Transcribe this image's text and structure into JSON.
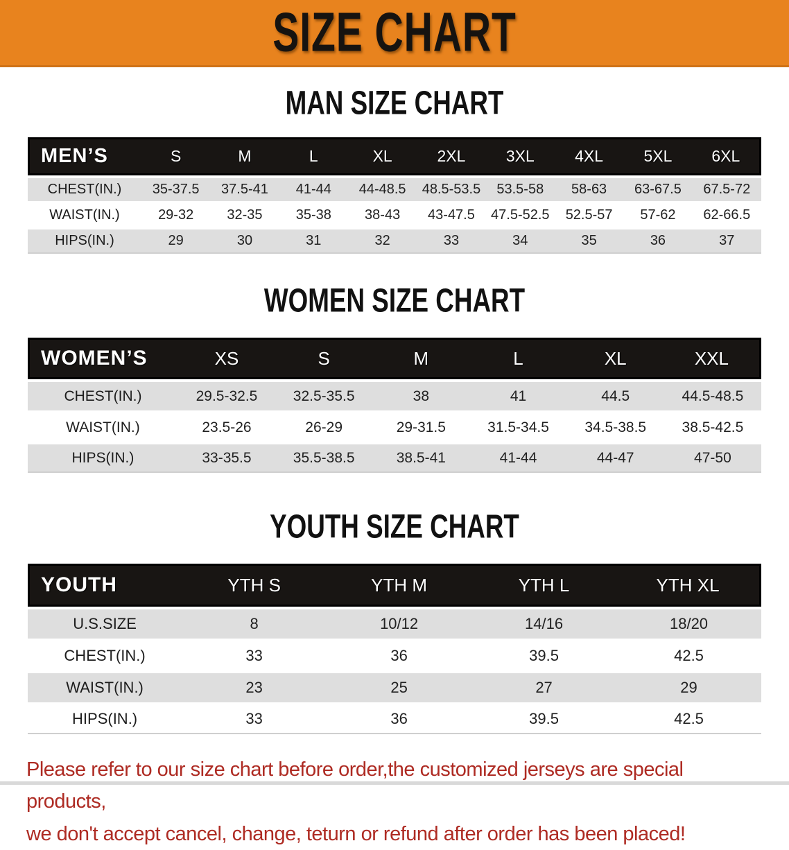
{
  "banner": {
    "title": "SIZE CHART"
  },
  "colors": {
    "banner_bg": "#E8831E",
    "table_header_bg": "#181513",
    "shaded_row_bg": "#DEDEDE",
    "footer_text": "#AE2B23"
  },
  "tables": [
    {
      "heading": "MAN SIZE CHART",
      "label": "MEN’S",
      "columns": [
        "S",
        "M",
        "L",
        "XL",
        "2XL",
        "3XL",
        "4XL",
        "5XL",
        "6XL"
      ],
      "rows": [
        {
          "label": "CHEST(IN.)",
          "values": [
            "35-37.5",
            "37.5-41",
            "41-44",
            "44-48.5",
            "48.5-53.5",
            "53.5-58",
            "58-63",
            "63-67.5",
            "67.5-72"
          ]
        },
        {
          "label": "WAIST(IN.)",
          "values": [
            "29-32",
            "32-35",
            "35-38",
            "38-43",
            "43-47.5",
            "47.5-52.5",
            "52.5-57",
            "57-62",
            "62-66.5"
          ]
        },
        {
          "label": "HIPS(IN.)",
          "values": [
            "29",
            "30",
            "31",
            "32",
            "33",
            "34",
            "35",
            "36",
            "37"
          ]
        }
      ]
    },
    {
      "heading": "WOMEN SIZE CHART",
      "label": "WOMEN’S",
      "columns": [
        "XS",
        "S",
        "M",
        "L",
        "XL",
        "XXL"
      ],
      "rows": [
        {
          "label": "CHEST(IN.)",
          "values": [
            "29.5-32.5",
            "32.5-35.5",
            "38",
            "41",
            "44.5",
            "44.5-48.5"
          ]
        },
        {
          "label": "WAIST(IN.)",
          "values": [
            "23.5-26",
            "26-29",
            "29-31.5",
            "31.5-34.5",
            "34.5-38.5",
            "38.5-42.5"
          ]
        },
        {
          "label": "HIPS(IN.)",
          "values": [
            "33-35.5",
            "35.5-38.5",
            "38.5-41",
            "41-44",
            "44-47",
            "47-50"
          ]
        }
      ]
    },
    {
      "heading": "YOUTH SIZE CHART",
      "label": "YOUTH",
      "columns": [
        "YTH S",
        "YTH M",
        "YTH L",
        "YTH XL"
      ],
      "rows": [
        {
          "label": "U.S.SIZE",
          "values": [
            "8",
            "10/12",
            "14/16",
            "18/20"
          ]
        },
        {
          "label": "CHEST(IN.)",
          "values": [
            "33",
            "36",
            "39.5",
            "42.5"
          ]
        },
        {
          "label": "WAIST(IN.)",
          "values": [
            "23",
            "25",
            "27",
            "29"
          ]
        },
        {
          "label": "HIPS(IN.)",
          "values": [
            "33",
            "36",
            "39.5",
            "42.5"
          ]
        }
      ]
    }
  ],
  "footer": {
    "line1": "Please refer to our size chart before order,the customized jerseys are special products,",
    "line2": "we don't accept cancel, change, teturn or refund after order has been placed!"
  }
}
